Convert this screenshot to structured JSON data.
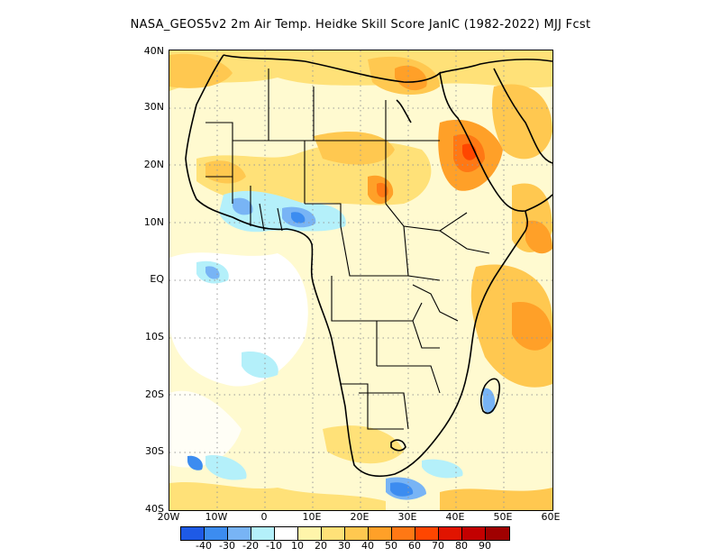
{
  "title": "NASA_GEOS5v2  2m Air Temp. Heidke Skill Score JanIC (1982-2022) MJJ Fcst",
  "y_axis_labels": [
    "40N",
    "30N",
    "20N",
    "10N",
    "EQ",
    "10S",
    "20S",
    "30S",
    "40S"
  ],
  "x_axis_labels": [
    "20W",
    "10W",
    "0",
    "10E",
    "20E",
    "30E",
    "40E",
    "50E",
    "60E"
  ],
  "colorbar": {
    "colors": [
      "#1e5ae6",
      "#3c8cf0",
      "#78b4f5",
      "#b4f0fa",
      "#ffffff",
      "#fff5aa",
      "#ffe178",
      "#ffc850",
      "#ffa028",
      "#ff7814",
      "#ff4600",
      "#e11400",
      "#c30000",
      "#a00000"
    ],
    "labels": [
      "-40",
      "-30",
      "-20",
      "-10",
      "10",
      "20",
      "30",
      "40",
      "50",
      "60",
      "70",
      "80",
      "90"
    ]
  },
  "legend_icon": "colorbar-gradient-icon"
}
